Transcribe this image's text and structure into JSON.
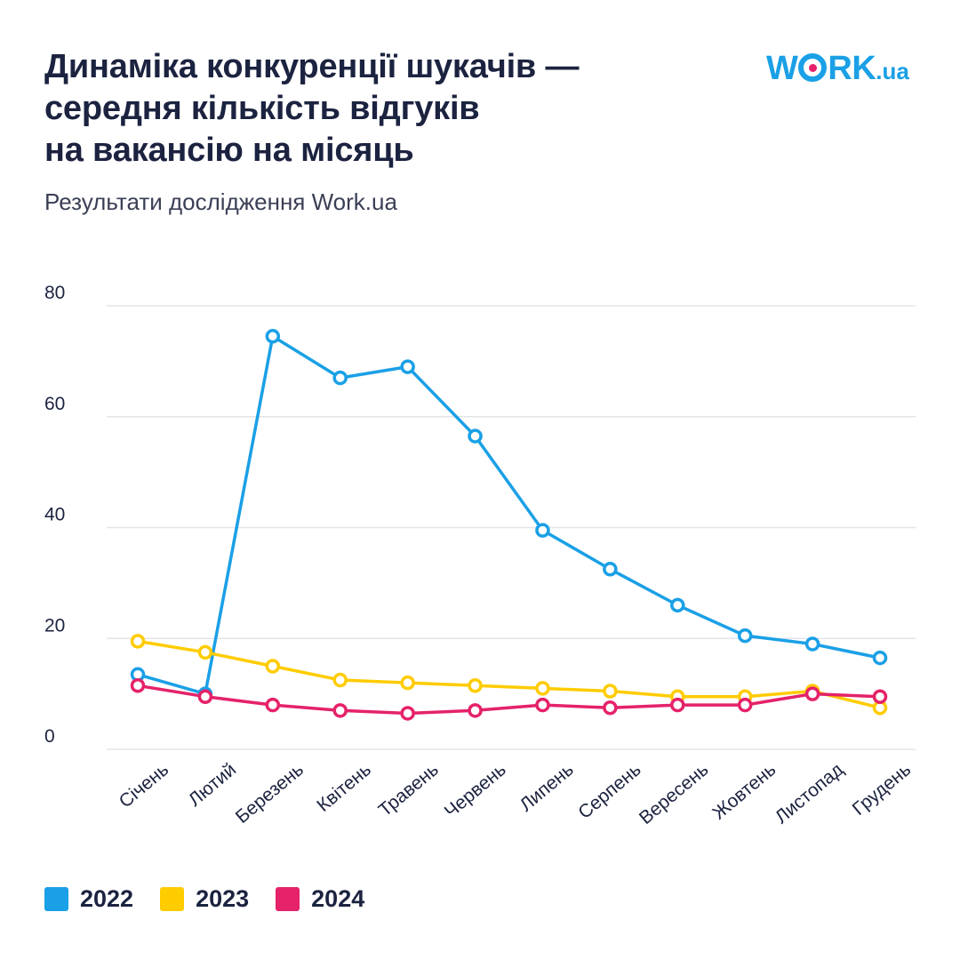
{
  "header": {
    "title_lines": [
      "Динаміка конкуренції шукачів —",
      "середня кількість відгуків",
      "на вакансію на місяць"
    ],
    "subtitle": "Результати дослідження Work.ua",
    "logo": {
      "part1": "W",
      "part2": "RK",
      "suffix": ".ua"
    }
  },
  "colors": {
    "2022": "#1aa0e6",
    "2023": "#ffcc00",
    "2024": "#e5226a",
    "grid": "#e3e5ea",
    "text": "#1c2340"
  },
  "chart_data": {
    "type": "line",
    "title": "Динаміка конкуренції шукачів — середня кількість відгуків на вакансію на місяць",
    "subtitle": "Результати дослідження Work.ua",
    "categories": [
      "Січень",
      "Лютий",
      "Березень",
      "Квітень",
      "Травень",
      "Червень",
      "Липень",
      "Серпень",
      "Вересень",
      "Жовтень",
      "Листопад",
      "Грудень"
    ],
    "ylim": [
      0,
      80
    ],
    "yticks": [
      0,
      20,
      40,
      60,
      80
    ],
    "grid": true,
    "legend_position": "bottom-left",
    "series": [
      {
        "name": "2022",
        "color": "#1aa0e6",
        "values": [
          13.5,
          10,
          74.5,
          67,
          69,
          56.5,
          39.5,
          32.5,
          26,
          20.5,
          19,
          16.5
        ]
      },
      {
        "name": "2023",
        "color": "#ffcc00",
        "values": [
          19.5,
          17.5,
          15,
          12.5,
          12,
          11.5,
          11,
          10.5,
          9.5,
          9.5,
          10.5,
          7.5
        ]
      },
      {
        "name": "2024",
        "color": "#e5226a",
        "values": [
          11.5,
          9.5,
          8,
          7,
          6.5,
          7,
          8,
          7.5,
          8,
          8,
          10,
          9.5
        ]
      }
    ]
  }
}
